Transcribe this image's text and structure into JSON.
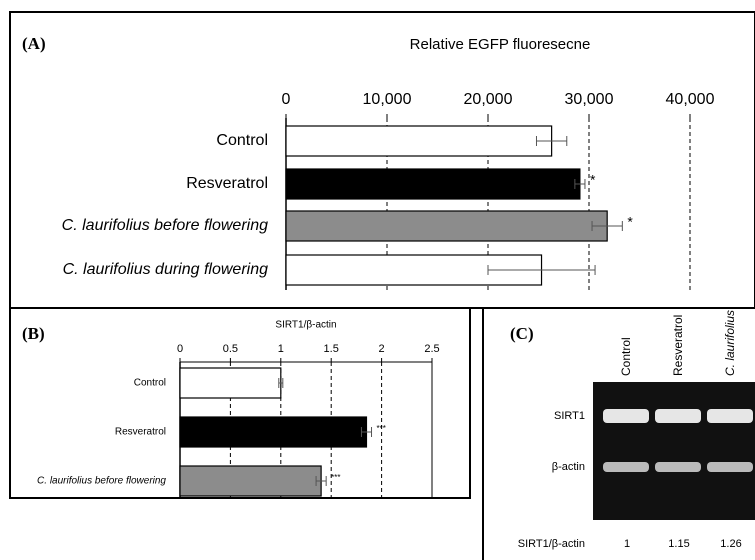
{
  "chart_data": [
    {
      "type": "hbar",
      "panel": "(A)",
      "x_label": "Relative EGFP fluoresecne",
      "categories": [
        "Control",
        "Resveratrol",
        "C. laurifolius before flowering",
        "C. laurifolius during flowering"
      ],
      "values": [
        26300,
        29100,
        31800,
        25300
      ],
      "errors": [
        1500,
        500,
        1500,
        5300
      ],
      "significance": [
        null,
        "*",
        "*",
        null
      ],
      "colors": [
        "#ffffff",
        "#000000",
        "#8c8c8c",
        "#ffffff"
      ],
      "xlim": [
        0,
        40000
      ],
      "xticks": [
        0,
        {
          "value": 10000,
          "label": "10,000"
        },
        {
          "value": 20000,
          "label": "20,000"
        },
        {
          "value": 30000,
          "label": "30,000"
        },
        {
          "value": 40000,
          "label": "40,000"
        }
      ],
      "grid": true
    },
    {
      "type": "hbar",
      "panel": "(B)",
      "x_label": "SIRT1/β-actin",
      "categories": [
        "Control",
        "Resveratrol",
        "C. laurifolius before flowering"
      ],
      "values": [
        1.0,
        1.85,
        1.4
      ],
      "errors": [
        0.02,
        0.05,
        0.05
      ],
      "significance": [
        null,
        "***",
        "***"
      ],
      "colors": [
        "#ffffff",
        "#000000",
        "#8c8c8c"
      ],
      "xlim": [
        0,
        2.5
      ],
      "xticks": [
        0,
        0.5,
        1,
        1.5,
        2,
        2.5
      ],
      "grid": true
    },
    {
      "type": "gel",
      "panel": "(C)",
      "lanes": [
        "Control",
        "Resveratrol",
        "C. laurifolius"
      ],
      "rows": [
        "SIRT1",
        "β-actin"
      ],
      "ratio_label": "SIRT1/β-actin",
      "values": [
        1,
        1.15,
        1.26
      ]
    }
  ]
}
